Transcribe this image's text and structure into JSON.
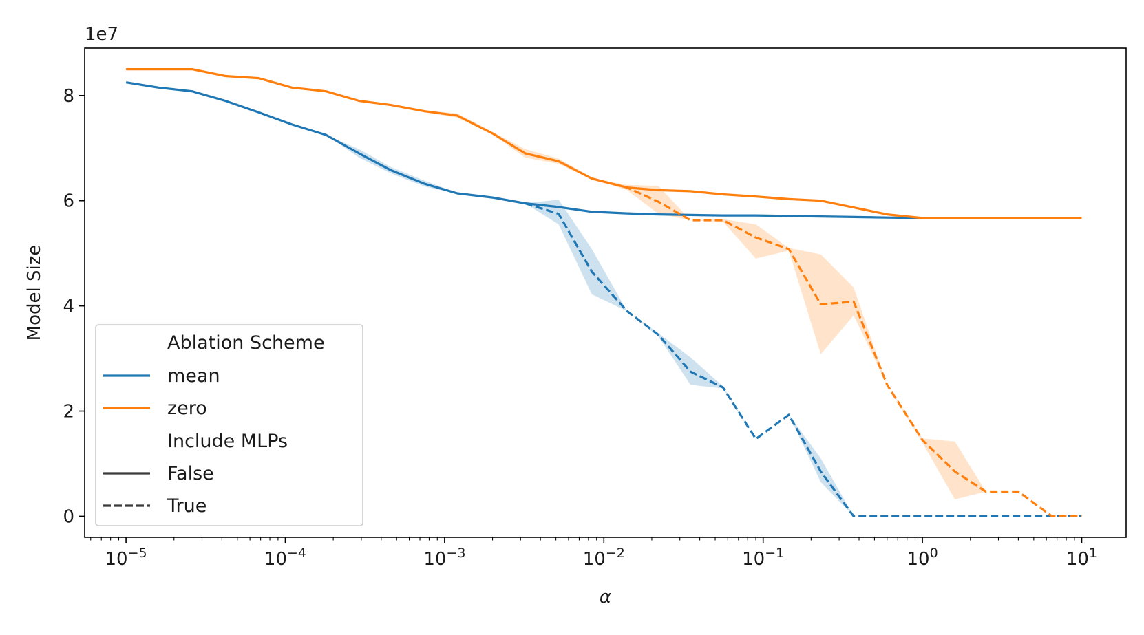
{
  "chart_data": {
    "type": "line",
    "title": "",
    "xlabel": "α",
    "ylabel": "Model Size",
    "xscale": "log",
    "xlim": [
      5.5e-06,
      19
    ],
    "ylim": [
      -0.4,
      8.9
    ],
    "y_multiplier_label": "1e7",
    "x_ticks": [
      {
        "value": 1e-05,
        "base": "10",
        "exp": "−5"
      },
      {
        "value": 0.0001,
        "base": "10",
        "exp": "−4"
      },
      {
        "value": 0.001,
        "base": "10",
        "exp": "−3"
      },
      {
        "value": 0.01,
        "base": "10",
        "exp": "−2"
      },
      {
        "value": 0.1,
        "base": "10",
        "exp": "−1"
      },
      {
        "value": 1,
        "base": "10",
        "exp": "0"
      },
      {
        "value": 10,
        "base": "10",
        "exp": "1"
      }
    ],
    "y_ticks": [
      {
        "value": 0,
        "label": "0"
      },
      {
        "value": 2,
        "label": "2"
      },
      {
        "value": 4,
        "label": "4"
      },
      {
        "value": 6,
        "label": "6"
      },
      {
        "value": 8,
        "label": "8"
      }
    ],
    "legend": {
      "position": "lower-left",
      "hue_title": "Ablation Scheme",
      "style_title": "Include MLPs",
      "entries": [
        {
          "label": "mean",
          "kind": "hue"
        },
        {
          "label": "zero",
          "kind": "hue"
        },
        {
          "label": "False",
          "kind": "style"
        },
        {
          "label": "True",
          "kind": "style"
        }
      ]
    },
    "colors": {
      "mean": "#1f77b4",
      "zero": "#ff7f0e",
      "legend_style": "#3a3a3a"
    },
    "series": [
      {
        "name": "mean",
        "include_mlps": "False",
        "dashed": false,
        "color": "#1f77b4",
        "points": [
          [
            1e-05,
            8.25
          ],
          [
            1.6e-05,
            8.15
          ],
          [
            2.6e-05,
            8.08
          ],
          [
            4.2e-05,
            7.9
          ],
          [
            6.8e-05,
            7.68
          ],
          [
            0.00011,
            7.45
          ],
          [
            0.00018,
            7.25
          ],
          [
            0.00029,
            6.9
          ],
          [
            0.00046,
            6.58
          ],
          [
            0.00075,
            6.32
          ],
          [
            0.0012,
            6.14
          ],
          [
            0.002,
            6.06
          ],
          [
            0.0032,
            5.95
          ],
          [
            0.0052,
            5.88
          ],
          [
            0.0084,
            5.79
          ],
          [
            0.014,
            5.76
          ],
          [
            0.022,
            5.74
          ],
          [
            0.035,
            5.73
          ],
          [
            0.056,
            5.72
          ],
          [
            0.09,
            5.72
          ],
          [
            0.145,
            5.71
          ],
          [
            0.23,
            5.7
          ],
          [
            0.37,
            5.69
          ],
          [
            0.6,
            5.68
          ],
          [
            1,
            5.67
          ],
          [
            1.6,
            5.67
          ],
          [
            2.5,
            5.67
          ],
          [
            4,
            5.67
          ],
          [
            6.5,
            5.67
          ],
          [
            10,
            5.67
          ]
        ],
        "band": [
          [
            0.00018,
            7.25,
            7.25
          ],
          [
            0.00029,
            6.82,
            6.98
          ],
          [
            0.00046,
            6.52,
            6.64
          ],
          [
            0.00075,
            6.27,
            6.38
          ],
          [
            0.0012,
            6.13,
            6.15
          ]
        ]
      },
      {
        "name": "zero",
        "include_mlps": "False",
        "dashed": false,
        "color": "#ff7f0e",
        "points": [
          [
            1e-05,
            8.5
          ],
          [
            1.6e-05,
            8.5
          ],
          [
            2.6e-05,
            8.5
          ],
          [
            4.2e-05,
            8.37
          ],
          [
            6.8e-05,
            8.33
          ],
          [
            0.00011,
            8.15
          ],
          [
            0.00018,
            8.08
          ],
          [
            0.00029,
            7.9
          ],
          [
            0.00046,
            7.82
          ],
          [
            0.00075,
            7.7
          ],
          [
            0.0012,
            7.62
          ],
          [
            0.002,
            7.28
          ],
          [
            0.0032,
            6.9
          ],
          [
            0.0052,
            6.75
          ],
          [
            0.0084,
            6.42
          ],
          [
            0.014,
            6.25
          ],
          [
            0.022,
            6.2
          ],
          [
            0.035,
            6.18
          ],
          [
            0.056,
            6.12
          ],
          [
            0.09,
            6.08
          ],
          [
            0.145,
            6.03
          ],
          [
            0.23,
            6.0
          ],
          [
            0.37,
            5.87
          ],
          [
            0.6,
            5.74
          ],
          [
            1,
            5.67
          ],
          [
            1.6,
            5.67
          ],
          [
            2.5,
            5.67
          ],
          [
            4,
            5.67
          ],
          [
            6.5,
            5.67
          ],
          [
            10,
            5.67
          ]
        ],
        "band": [
          [
            0.00075,
            7.68,
            7.72
          ],
          [
            0.0012,
            7.58,
            7.66
          ],
          [
            0.002,
            7.26,
            7.31
          ],
          [
            0.0032,
            6.82,
            6.98
          ],
          [
            0.0052,
            6.7,
            6.8
          ],
          [
            0.0084,
            6.4,
            6.44
          ]
        ]
      },
      {
        "name": "mean",
        "include_mlps": "True",
        "dashed": true,
        "color": "#1f77b4",
        "points": [
          [
            0.0032,
            5.95
          ],
          [
            0.0052,
            5.75
          ],
          [
            0.0084,
            4.65
          ],
          [
            0.014,
            3.9
          ],
          [
            0.022,
            3.45
          ],
          [
            0.035,
            2.75
          ],
          [
            0.056,
            2.45
          ],
          [
            0.09,
            1.47
          ],
          [
            0.145,
            1.93
          ],
          [
            0.23,
            0.85
          ],
          [
            0.37,
            0.0
          ],
          [
            0.6,
            0.0
          ],
          [
            1,
            0.0
          ],
          [
            1.6,
            0.0
          ],
          [
            2.5,
            0.0
          ],
          [
            4,
            0.0
          ],
          [
            6.5,
            0.0
          ],
          [
            10,
            0.0
          ]
        ],
        "band": [
          [
            0.0032,
            5.95,
            5.95
          ],
          [
            0.0052,
            5.55,
            6.02
          ],
          [
            0.0084,
            4.22,
            5.08
          ],
          [
            0.014,
            3.9,
            3.9
          ],
          [
            0.022,
            3.42,
            3.48
          ],
          [
            0.035,
            2.5,
            3.02
          ],
          [
            0.056,
            2.43,
            2.47
          ],
          [
            0.09,
            1.47,
            1.47
          ],
          [
            0.145,
            1.93,
            1.93
          ],
          [
            0.23,
            0.65,
            1.1
          ],
          [
            0.37,
            0.0,
            0.0
          ]
        ]
      },
      {
        "name": "zero",
        "include_mlps": "True",
        "dashed": true,
        "color": "#ff7f0e",
        "points": [
          [
            0.0084,
            6.42
          ],
          [
            0.014,
            6.25
          ],
          [
            0.022,
            5.98
          ],
          [
            0.035,
            5.63
          ],
          [
            0.056,
            5.63
          ],
          [
            0.09,
            5.3
          ],
          [
            0.145,
            5.08
          ],
          [
            0.23,
            4.03
          ],
          [
            0.37,
            4.08
          ],
          [
            0.6,
            2.5
          ],
          [
            1,
            1.45
          ],
          [
            1.6,
            0.85
          ],
          [
            2.5,
            0.47
          ],
          [
            4,
            0.47
          ],
          [
            6.5,
            0.0
          ],
          [
            10,
            0.0
          ]
        ],
        "band": [
          [
            0.0084,
            6.42,
            6.42
          ],
          [
            0.014,
            6.2,
            6.3
          ],
          [
            0.022,
            5.75,
            6.28
          ],
          [
            0.035,
            5.63,
            5.63
          ],
          [
            0.056,
            5.6,
            5.65
          ],
          [
            0.09,
            4.9,
            5.55
          ],
          [
            0.145,
            5.05,
            5.1
          ],
          [
            0.23,
            3.08,
            4.98
          ],
          [
            0.37,
            3.82,
            4.35
          ],
          [
            0.6,
            2.5,
            2.5
          ],
          [
            1,
            1.4,
            1.48
          ],
          [
            1.6,
            0.32,
            1.42
          ],
          [
            2.5,
            0.47,
            0.47
          ],
          [
            4,
            0.47,
            0.47
          ],
          [
            6.5,
            0.0,
            0.0
          ]
        ]
      }
    ]
  }
}
